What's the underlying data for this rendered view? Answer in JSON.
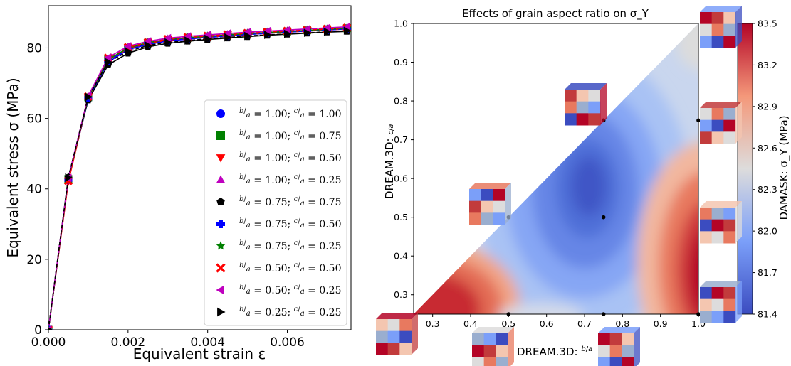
{
  "chart_data": [
    {
      "type": "line",
      "xlabel": "Equivalent strain ε",
      "ylabel": "Equivalent stress σ (MPa)",
      "xlim": [
        0,
        0.0076
      ],
      "ylim": [
        0,
        92
      ],
      "x_ticks": [
        "0.000",
        "0.002",
        "0.004",
        "0.006"
      ],
      "y_ticks": [
        "0",
        "20",
        "40",
        "60",
        "80"
      ],
      "x": [
        0,
        0.0005,
        0.001,
        0.0015,
        0.002,
        0.0025,
        0.003,
        0.0035,
        0.004,
        0.0045,
        0.005,
        0.0055,
        0.006,
        0.0065,
        0.007,
        0.0075
      ],
      "legend_position": "lower-right",
      "series": [
        {
          "name": "b/a = 1.00; c/a = 1.00",
          "b": "1.00",
          "c": "1.00",
          "marker": "circle",
          "color": "#0000ff",
          "line": "#0000ff",
          "values": [
            0,
            42.5,
            65.5,
            76.0,
            79.5,
            81.0,
            82.0,
            82.5,
            83.0,
            83.4,
            83.8,
            84.2,
            84.5,
            84.8,
            85.1,
            85.4
          ]
        },
        {
          "name": "b/a = 1.00; c/a = 0.75",
          "b": "1.00",
          "c": "0.75",
          "marker": "square",
          "color": "#008000",
          "line": "#008000",
          "values": [
            0,
            42.8,
            66.0,
            76.8,
            80.0,
            81.5,
            82.4,
            82.9,
            83.3,
            83.7,
            84.1,
            84.4,
            84.7,
            85.0,
            85.3,
            85.6
          ]
        },
        {
          "name": "b/a = 1.00; c/a = 0.50",
          "b": "1.00",
          "c": "0.50",
          "marker": "triangle-down",
          "color": "#ff0000",
          "line": "#ff0000",
          "values": [
            0,
            42.0,
            65.8,
            76.5,
            79.8,
            81.3,
            82.2,
            82.7,
            83.1,
            83.5,
            83.9,
            84.2,
            84.5,
            84.8,
            85.1,
            85.4
          ]
        },
        {
          "name": "b/a = 1.00; c/a = 0.25",
          "b": "1.00",
          "c": "0.25",
          "marker": "triangle-up",
          "color": "#bf00bf",
          "line": "#bf00bf",
          "values": [
            0,
            43.0,
            66.3,
            77.0,
            80.3,
            81.7,
            82.6,
            83.1,
            83.5,
            83.9,
            84.3,
            84.6,
            84.9,
            85.2,
            85.5,
            85.8
          ]
        },
        {
          "name": "b/a = 0.75; c/a = 0.75",
          "b": "0.75",
          "c": "0.75",
          "marker": "pentagon",
          "color": "#000000",
          "line": "#000000",
          "values": [
            0,
            43.3,
            65.2,
            75.2,
            78.5,
            80.3,
            81.3,
            81.9,
            82.4,
            82.8,
            83.2,
            83.6,
            83.9,
            84.2,
            84.5,
            84.7
          ]
        },
        {
          "name": "b/a = 0.75; c/a = 0.50",
          "b": "0.75",
          "c": "0.50",
          "marker": "plus",
          "color": "#0000ff",
          "line": "#0000ff",
          "values": [
            0,
            42.6,
            65.7,
            76.3,
            79.6,
            81.1,
            82.1,
            82.6,
            83.0,
            83.4,
            83.8,
            84.2,
            84.5,
            84.8,
            85.1,
            85.4
          ]
        },
        {
          "name": "b/a = 0.75; c/a = 0.25",
          "b": "0.75",
          "c": "0.25",
          "marker": "star",
          "color": "#008000",
          "line": "#008000",
          "values": [
            0,
            42.7,
            66.0,
            76.7,
            80.0,
            81.5,
            82.4,
            82.9,
            83.3,
            83.7,
            84.1,
            84.4,
            84.7,
            85.0,
            85.3,
            85.6
          ]
        },
        {
          "name": "b/a = 0.50; c/a = 0.50",
          "b": "0.50",
          "c": "0.50",
          "marker": "x",
          "color": "#ff0000",
          "line": "#ff0000",
          "values": [
            0,
            42.3,
            66.2,
            77.2,
            80.2,
            81.6,
            82.5,
            83.0,
            83.4,
            83.8,
            84.2,
            84.5,
            84.8,
            85.1,
            85.4,
            85.7
          ]
        },
        {
          "name": "b/a = 0.50; c/a = 0.25",
          "b": "0.50",
          "c": "0.25",
          "marker": "triangle-left",
          "color": "#bf00bf",
          "line": "#bf00bf",
          "values": [
            0,
            43.1,
            66.4,
            77.3,
            80.5,
            81.9,
            82.8,
            83.3,
            83.7,
            84.1,
            84.5,
            84.8,
            85.1,
            85.4,
            85.7,
            86.0
          ]
        },
        {
          "name": "b/a = 0.25; c/a = 0.25",
          "b": "0.25",
          "c": "0.25",
          "marker": "triangle-right",
          "color": "#000000",
          "line": "#000000",
          "values": [
            0,
            43.2,
            66.1,
            76.0,
            79.0,
            80.7,
            81.6,
            82.1,
            82.6,
            83.0,
            83.4,
            83.7,
            84.0,
            84.3,
            84.6,
            84.9
          ]
        }
      ]
    },
    {
      "type": "heatmap",
      "title": "Effects of grain aspect ratio on σ_Y",
      "xlabel": "DREAM.3D: b/a",
      "ylabel": "DREAM.3D: c/a",
      "xlabel_prefix": "DREAM.3D:",
      "ylabel_prefix": "DREAM.3D:",
      "xlim": [
        0.25,
        1.0
      ],
      "ylim": [
        0.25,
        1.0
      ],
      "x_ticks": [
        "0.3",
        "0.4",
        "0.5",
        "0.6",
        "0.7",
        "0.8",
        "0.9",
        "1.0"
      ],
      "y_ticks": [
        "0.3",
        "0.4",
        "0.5",
        "0.6",
        "0.7",
        "0.8",
        "0.9",
        "1.0"
      ],
      "colorbar_label": "DAMASK: σ_Y (MPa)",
      "colorbar_ticks": [
        "81.4",
        "81.7",
        "82.0",
        "82.3",
        "82.6",
        "82.9",
        "83.2",
        "83.5"
      ],
      "colorbar_range": [
        81.4,
        83.5
      ],
      "sample_points": [
        {
          "b": 0.5,
          "c": 0.5
        },
        {
          "b": 0.75,
          "c": 0.75
        },
        {
          "b": 0.75,
          "c": 0.5
        },
        {
          "b": 1.0,
          "c": 0.75
        },
        {
          "b": 0.5,
          "c": 0.25
        },
        {
          "b": 0.75,
          "c": 0.25
        },
        {
          "b": 1.0,
          "c": 0.25
        }
      ],
      "field_description_colors": {
        "low": "#3b4cc0",
        "mid": "#dddcdc",
        "high": "#b40426"
      }
    }
  ]
}
